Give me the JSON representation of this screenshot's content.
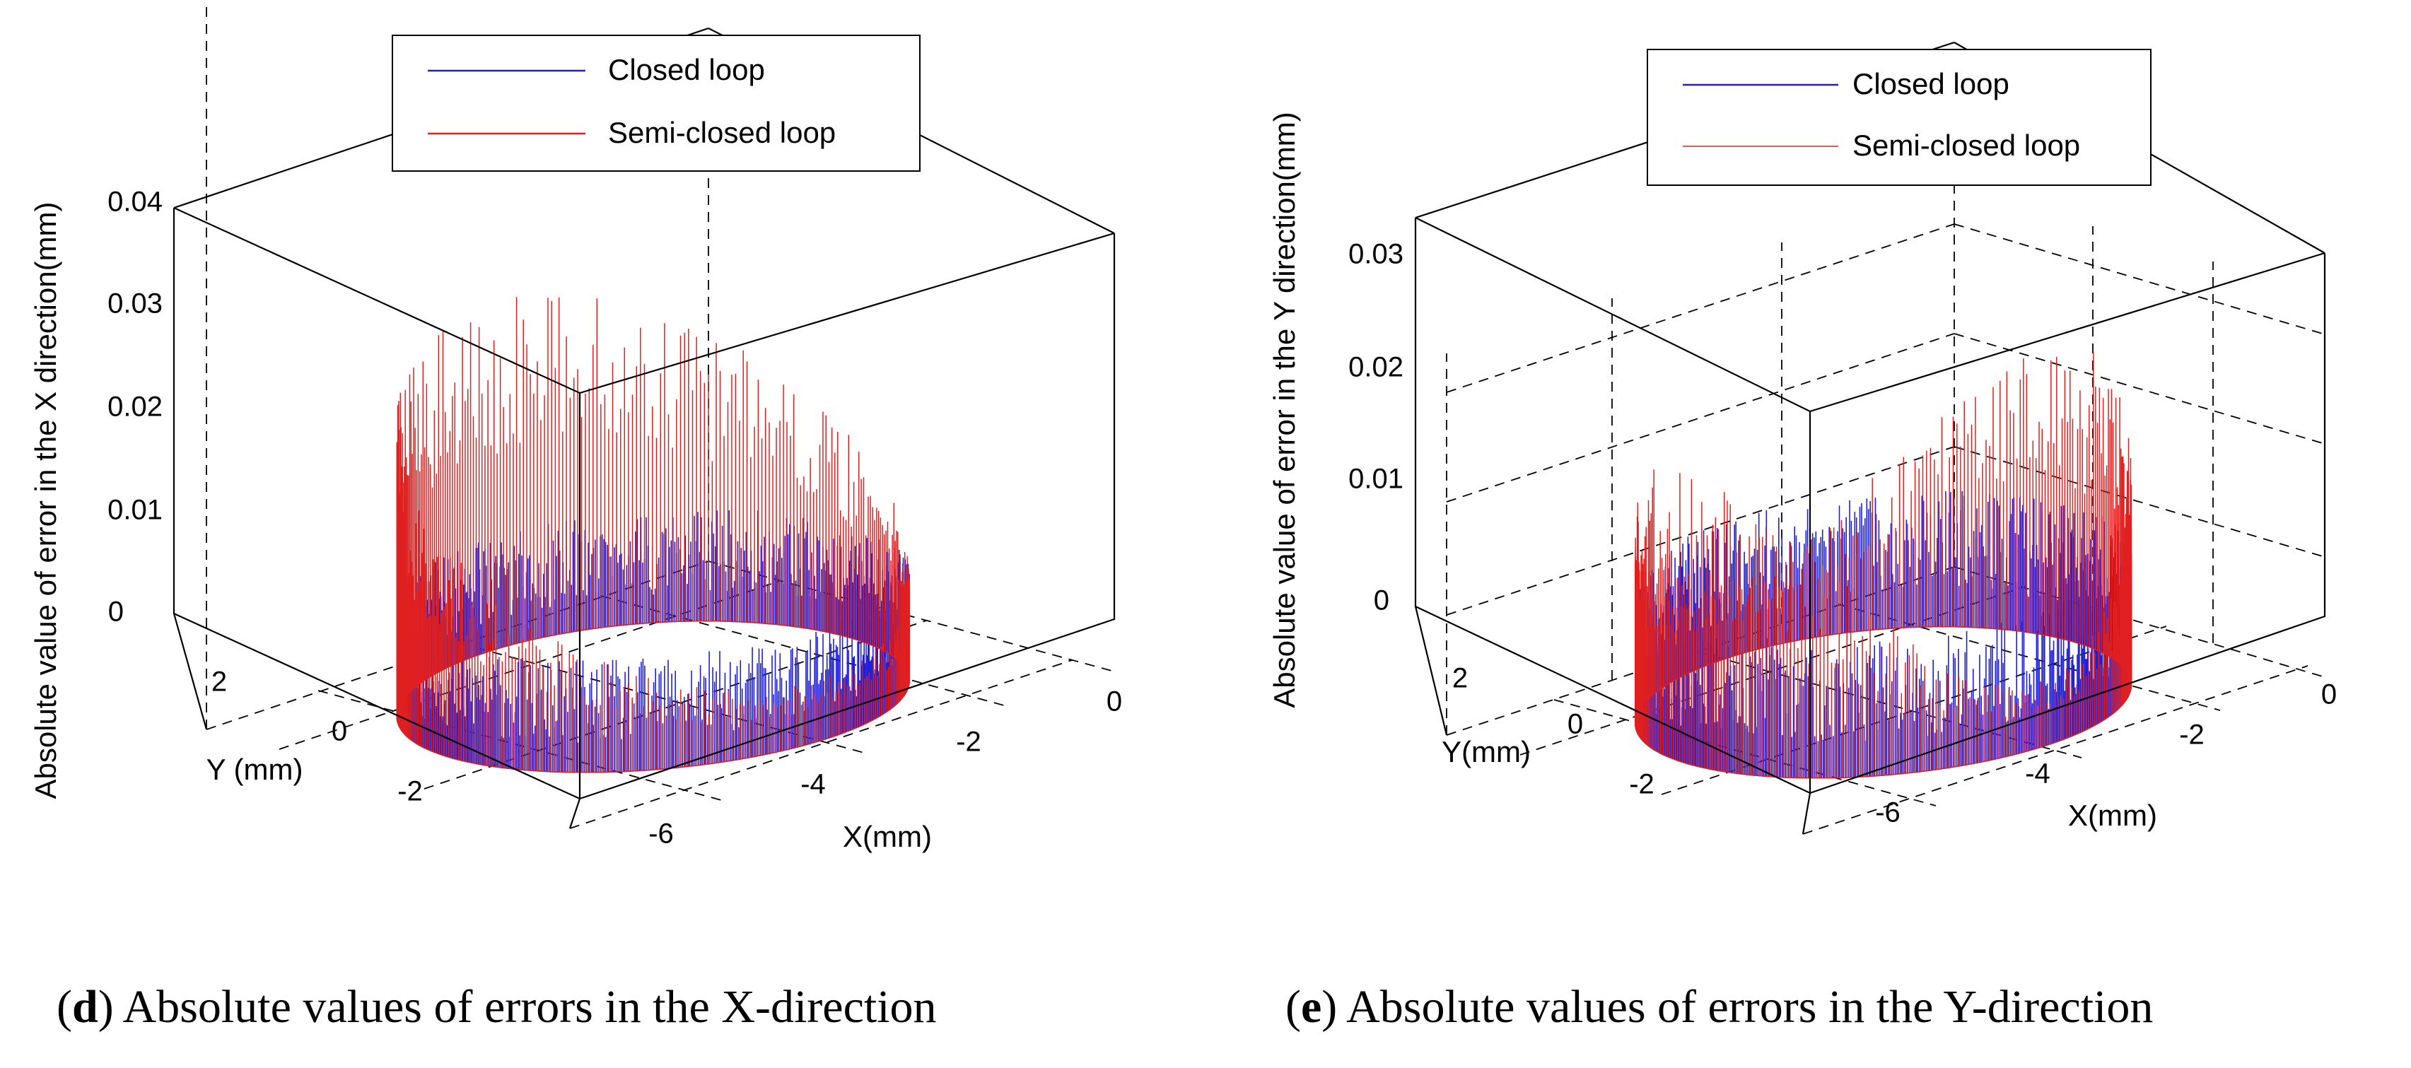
{
  "chart_data": [
    {
      "type": "line3d",
      "panel": "d",
      "caption_label": "d",
      "caption_text": "Absolute values of errors in the X-direction",
      "zlabel": "Absolute value of error in the X direction(mm)",
      "xlabel": "X(mm)",
      "ylabel": "Y (mm)",
      "zticks": [
        "0",
        "0.01",
        "0.02",
        "0.03",
        "0.04"
      ],
      "xticks": [
        "-6",
        "-4",
        "-2",
        "0"
      ],
      "yticks": [
        "2",
        "0",
        "-2"
      ],
      "zlim": [
        0,
        0.04
      ],
      "xlim": [
        -7,
        1
      ],
      "ylim": [
        -3.5,
        3.5
      ],
      "grid": true,
      "legend_position": "top-center",
      "trajectory": {
        "shape": "circle",
        "center_x": -3,
        "center_y": 0,
        "radius": 3
      },
      "series": [
        {
          "name": "Closed loop",
          "color": "#1f1fd6",
          "error_range": [
            0,
            0.011
          ],
          "samples": 900
        },
        {
          "name": "Semi-closed loop",
          "color": "#e02020",
          "error_range": [
            0,
            0.04
          ],
          "samples": 400,
          "profile": "large errors (~0.02-0.04 mm) on the +Y side of the circle, small errors (~0.01 mm) on the -Y side"
        }
      ]
    },
    {
      "type": "line3d",
      "panel": "e",
      "caption_label": "e",
      "caption_text": "Absolute values of errors in the Y-direction",
      "zlabel": "Absolute value of error in the Y direction(mm)",
      "xlabel": "X(mm)",
      "ylabel": "Y(mm)",
      "zticks": [
        "0",
        "0.01",
        "0.02",
        "0.03"
      ],
      "xticks": [
        "-6",
        "-4",
        "-2",
        "0"
      ],
      "yticks": [
        "2",
        "0",
        "-2"
      ],
      "zlim": [
        0,
        0.033
      ],
      "xlim": [
        -7,
        1
      ],
      "ylim": [
        -3.5,
        3.5
      ],
      "grid": true,
      "legend_position": "top-center",
      "trajectory": {
        "shape": "circle",
        "center_x": -3,
        "center_y": 0,
        "radius": 3
      },
      "series": [
        {
          "name": "Closed loop",
          "color": "#1f1fd6",
          "error_range": [
            0,
            0.012
          ],
          "samples": 900
        },
        {
          "name": "Semi-closed loop",
          "color": "#e02020",
          "error_range": [
            0,
            0.027
          ],
          "samples": 400,
          "profile": "peaks (~0.02-0.027 mm) near X = -6 and X = 0, small errors near X = -3"
        }
      ]
    }
  ]
}
